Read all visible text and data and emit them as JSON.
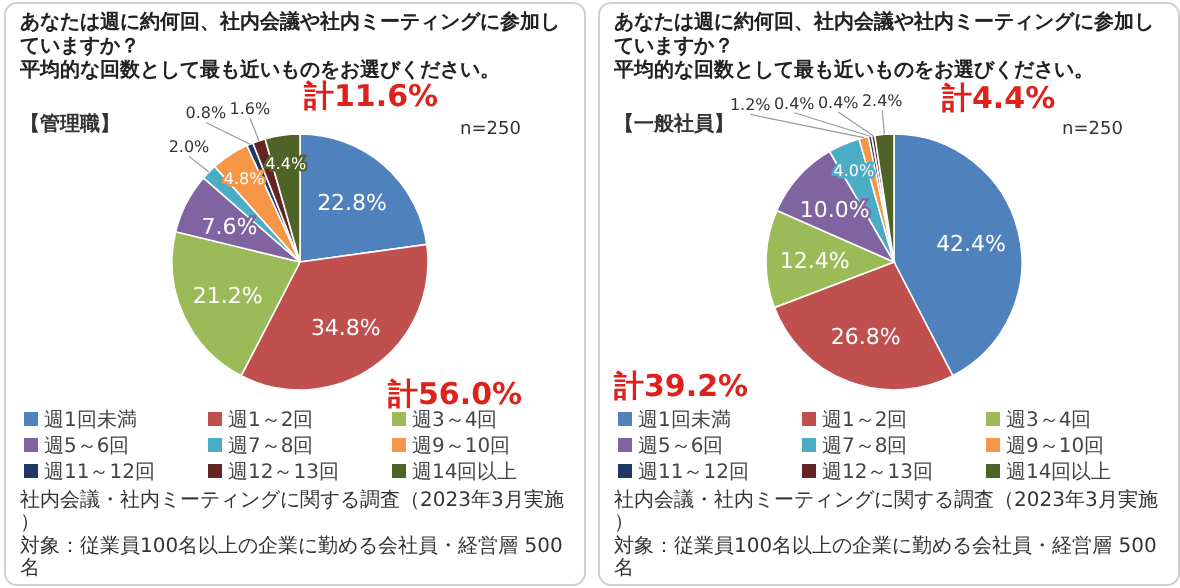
{
  "chart_data": [
    {
      "type": "pie",
      "title": "あなたは週に約何回、社内会議や社内ミーティングに参加していますか？",
      "subtitle": "平均的な回数として最も近いものをお選びください。",
      "categories": [
        "週1回未満",
        "週1～2回",
        "週3～4回",
        "週5～6回",
        "週7～8回",
        "週9～10回",
        "週11～12回",
        "週12～13回",
        "週14回以上"
      ],
      "values": [
        22.8,
        34.8,
        21.2,
        7.6,
        2.0,
        4.8,
        0.8,
        1.6,
        4.4
      ],
      "value_labels": [
        "22.8%",
        "34.8%",
        "21.2%",
        "7.6%",
        "2.0%",
        "4.8%",
        "0.8%",
        "1.6%",
        "4.4%"
      ],
      "colors": [
        "#4f81bd",
        "#c0504d",
        "#9bbb59",
        "#8064a2",
        "#4bacc6",
        "#f79646",
        "#1f3864",
        "#632523",
        "#4f6228"
      ],
      "legend": "bottom",
      "annotations": [
        "【管理職】",
        "n=250",
        "計11.6%",
        "計56.0%",
        "社内会議・社内ミーティングに関する調査（2023年3月実施）",
        "対象：従業員100名以上の企業に勤める会社員・経営層 500名"
      ]
    },
    {
      "type": "pie",
      "title": "あなたは週に約何回、社内会議や社内ミーティングに参加していますか？",
      "subtitle": "平均的な回数として最も近いものをお選びください。",
      "categories": [
        "週1回未満",
        "週1～2回",
        "週3～4回",
        "週5～6回",
        "週7～8回",
        "週9～10回",
        "週11～12回",
        "週12～13回",
        "週14回以上"
      ],
      "values": [
        42.4,
        26.8,
        12.4,
        10.0,
        4.0,
        1.2,
        0.4,
        0.4,
        2.4
      ],
      "value_labels": [
        "42.4%",
        "26.8%",
        "12.4%",
        "10.0%",
        "4.0%",
        "1.2%",
        "0.4%",
        "0.4%",
        "2.4%"
      ],
      "colors": [
        "#4f81bd",
        "#c0504d",
        "#9bbb59",
        "#8064a2",
        "#4bacc6",
        "#f79646",
        "#1f3864",
        "#632523",
        "#4f6228"
      ],
      "legend": "bottom",
      "annotations": [
        "【一般社員】",
        "n=250",
        "計4.4%",
        "計39.2%",
        "社内会議・社内ミーティングに関する調査（2023年3月実施）",
        "対象：従業員100名以上の企業に勤める会社員・経営層 500名"
      ]
    }
  ]
}
